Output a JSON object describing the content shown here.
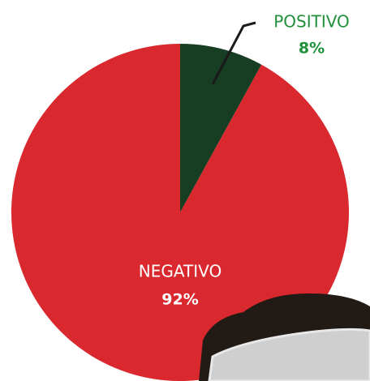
{
  "chart_data": {
    "type": "pie",
    "categories": [
      "POSITIVO",
      "NEGATIVO"
    ],
    "values": [
      8,
      92
    ],
    "value_labels": [
      "8%",
      "92%"
    ],
    "colors": [
      "#173d22",
      "#d9282e"
    ]
  }
}
